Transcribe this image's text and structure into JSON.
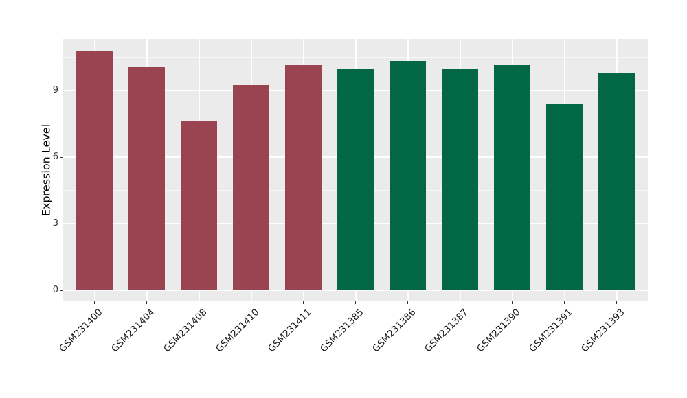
{
  "chart_data": {
    "type": "bar",
    "title": "",
    "xlabel": "",
    "ylabel": "Expression Level",
    "categories": [
      "GSM231400",
      "GSM231404",
      "GSM231408",
      "GSM231410",
      "GSM231411",
      "GSM231385",
      "GSM231386",
      "GSM231387",
      "GSM231390",
      "GSM231391",
      "GSM231393"
    ],
    "values": [
      10.8,
      10.05,
      7.65,
      9.25,
      10.2,
      10.0,
      10.35,
      10.0,
      10.2,
      8.4,
      9.8
    ],
    "bar_colors": [
      "#9A4351",
      "#9A4351",
      "#9A4351",
      "#9A4351",
      "#9A4351",
      "#026745",
      "#026745",
      "#026745",
      "#026745",
      "#026745",
      "#026745"
    ],
    "group_colors": {
      "left_group_red": "#9A4351",
      "right_group_green": "#026745"
    },
    "yticks": [
      0,
      3,
      6,
      9
    ],
    "minor_yticks": [
      1.5,
      4.5,
      7.5,
      10.5
    ],
    "ylim": [
      -0.55,
      11.35
    ],
    "bar_width_fraction": 0.7,
    "x_tick_rotation": 45,
    "panel_background": "#EBEBEB",
    "grid_color": "#FFFFFF",
    "page_background": "#FFFFFF",
    "legend": "none"
  }
}
